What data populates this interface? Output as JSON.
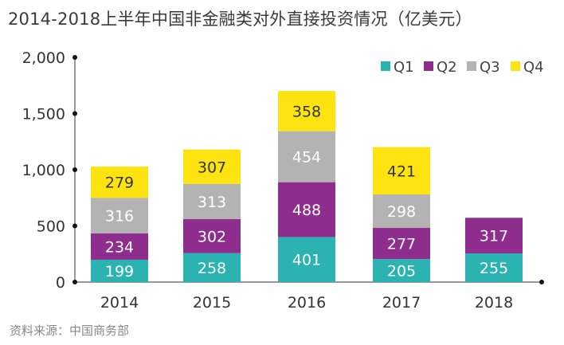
{
  "chart_data": {
    "type": "bar",
    "stacked": true,
    "title": "2014-2018上半年中国非金融类对外直接投资情况（亿美元）",
    "source": "资料来源：中国商务部",
    "categories": [
      "2014",
      "2015",
      "2016",
      "2017",
      "2018"
    ],
    "series": [
      {
        "name": "Q1",
        "color": "#2bb3b1",
        "values": [
          199,
          258,
          401,
          205,
          255
        ]
      },
      {
        "name": "Q2",
        "color": "#8e2d8e",
        "values": [
          234,
          302,
          488,
          277,
          317
        ]
      },
      {
        "name": "Q3",
        "color": "#b3b3b3",
        "values": [
          316,
          313,
          454,
          298,
          null
        ]
      },
      {
        "name": "Q4",
        "color": "#fde30f",
        "values": [
          279,
          307,
          358,
          421,
          null
        ]
      }
    ],
    "yticks": [
      "0",
      "500",
      "1,000",
      "1,500",
      "2,000"
    ],
    "ylim": [
      0,
      2000
    ],
    "grid": false,
    "legend_position": "top-right"
  }
}
